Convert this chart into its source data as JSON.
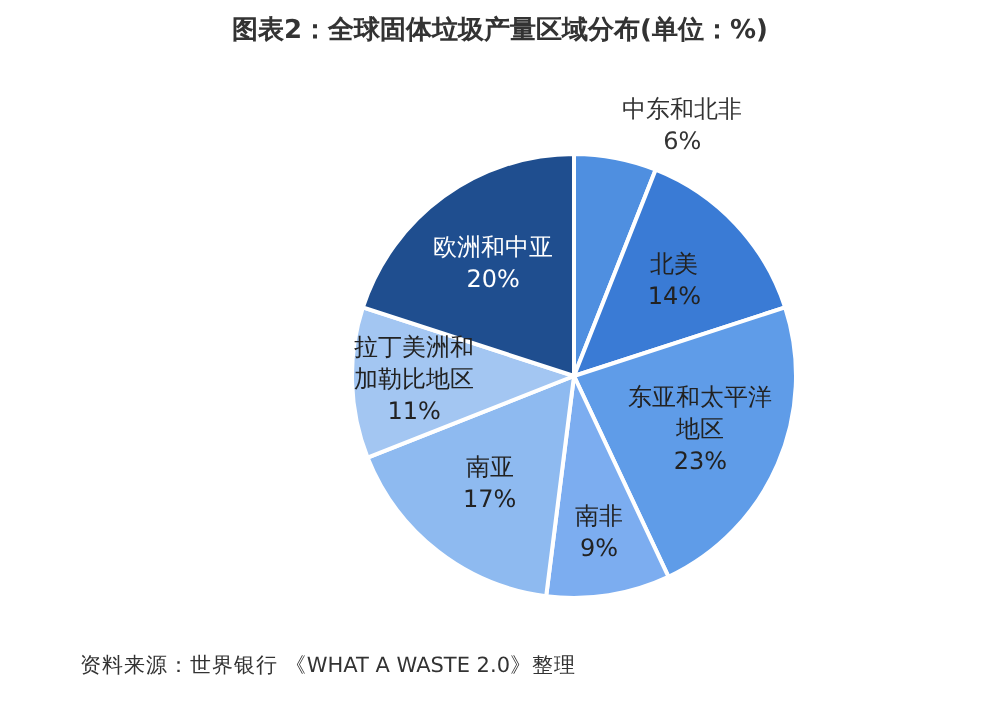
{
  "chart_data": {
    "type": "pie",
    "title": "图表2：全球固体垃圾产量区域分布(单位：%)",
    "categories": [
      "中东和北非",
      "北美",
      "东亚和太平洋地区",
      "南非",
      "南亚",
      "拉丁美洲和加勒比地区",
      "欧洲和中亚"
    ],
    "values": [
      6,
      14,
      23,
      9,
      17,
      11,
      20
    ],
    "colors": [
      "#4f8fe0",
      "#3a7bd5",
      "#5f9ce8",
      "#7cadf0",
      "#8ebaf0",
      "#a3c6f2",
      "#1f4e8f"
    ],
    "value_labels": [
      "6%",
      "14%",
      "23%",
      "9%",
      "17%",
      "11%",
      "20%"
    ],
    "legend": false,
    "annotations": [
      "资料来源：世界银行 《WHAT A WASTE 2.0》整理"
    ]
  }
}
